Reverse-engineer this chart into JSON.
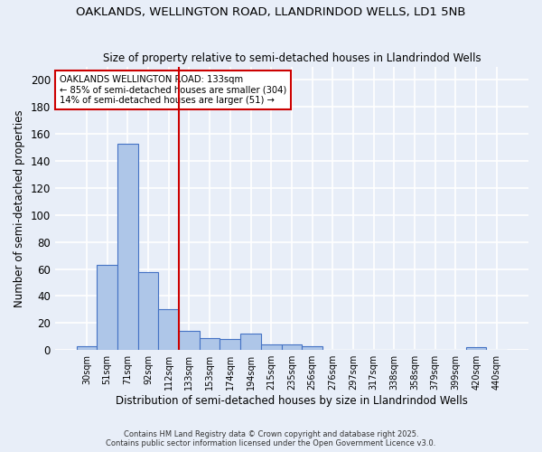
{
  "title1": "OAKLANDS, WELLINGTON ROAD, LLANDRINDOD WELLS, LD1 5NB",
  "title2": "Size of property relative to semi-detached houses in Llandrindod Wells",
  "xlabel": "Distribution of semi-detached houses by size in Llandrindod Wells",
  "ylabel": "Number of semi-detached properties",
  "bin_labels": [
    "30sqm",
    "51sqm",
    "71sqm",
    "92sqm",
    "112sqm",
    "133sqm",
    "153sqm",
    "174sqm",
    "194sqm",
    "215sqm",
    "235sqm",
    "256sqm",
    "276sqm",
    "297sqm",
    "317sqm",
    "338sqm",
    "358sqm",
    "379sqm",
    "399sqm",
    "420sqm",
    "440sqm"
  ],
  "bar_values": [
    3,
    63,
    153,
    58,
    30,
    14,
    9,
    8,
    12,
    4,
    4,
    3,
    0,
    0,
    0,
    0,
    0,
    0,
    0,
    2,
    0
  ],
  "bar_color": "#aec6e8",
  "bar_edge_color": "#4472c4",
  "vline_color": "#cc0000",
  "vline_bin_index": 5,
  "legend_title": "OAKLANDS WELLINGTON ROAD: 133sqm",
  "legend_line1": "← 85% of semi-detached houses are smaller (304)",
  "legend_line2": "14% of semi-detached houses are larger (51) →",
  "legend_box_color": "#ffffff",
  "legend_box_edge": "#cc0000",
  "ylim": [
    0,
    210
  ],
  "yticks": [
    0,
    20,
    40,
    60,
    80,
    100,
    120,
    140,
    160,
    180,
    200
  ],
  "footer1": "Contains HM Land Registry data © Crown copyright and database right 2025.",
  "footer2": "Contains public sector information licensed under the Open Government Licence v3.0.",
  "bg_color": "#e8eef8"
}
